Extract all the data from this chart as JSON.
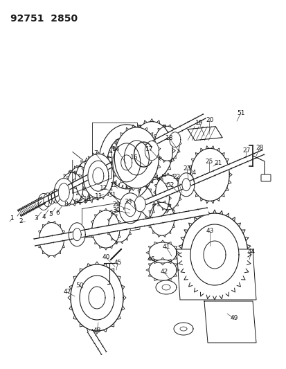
{
  "title": "92751  2850",
  "bg_color": "#ffffff",
  "lc": "#1a1a1a",
  "title_fontsize": 10,
  "label_fontsize": 6.5,
  "fig_width": 4.14,
  "fig_height": 5.33,
  "dpi": 100
}
